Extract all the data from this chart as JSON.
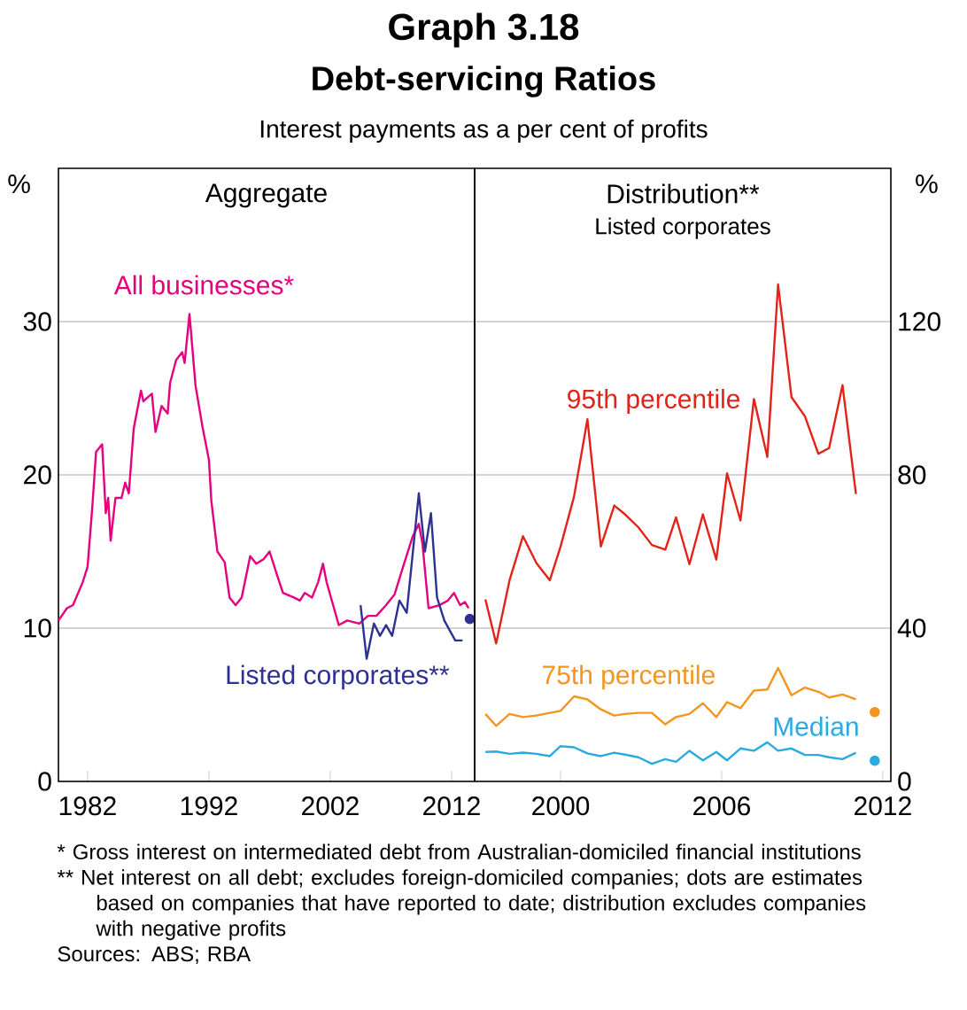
{
  "chart_data": [
    {
      "type": "line",
      "title": "Aggregate",
      "ylabel": "%",
      "annotations": [
        "Graph 3.18",
        "Debt-servicing Ratios",
        "Interest payments as a per cent of profits",
        "* Gross interest on intermediated debt from Australian-domiciled financial institutions",
        "** Net interest on all debt; excludes foreign-domiciled companies; dots are estimates based on companies that have reported to date; distribution excludes companies with negative profits",
        "Sources: ABS; RBA"
      ],
      "xlim": [
        1979.6,
        2013.9
      ],
      "xticks": [
        1982,
        1992,
        2002,
        2012
      ],
      "ylim": [
        0,
        40
      ],
      "yticks": [
        0,
        10,
        20,
        30
      ],
      "grid": "y",
      "series": [
        {
          "name": "All businesses*",
          "color": "#e6007e",
          "x": [
            1979.6,
            1980.3,
            1980.8,
            1981.6,
            1982.0,
            1982.4,
            1982.7,
            1983.2,
            1983.5,
            1983.7,
            1983.9,
            1984.3,
            1984.8,
            1985.1,
            1985.4,
            1985.8,
            1986.4,
            1986.6,
            1987.3,
            1987.6,
            1988.1,
            1988.6,
            1988.8,
            1989.3,
            1989.8,
            1990.0,
            1990.4,
            1990.9,
            1991.5,
            1992.0,
            1992.2,
            1992.7,
            1993.3,
            1993.7,
            1994.2,
            1994.7,
            1995.4,
            1995.9,
            1996.5,
            1997.0,
            1997.6,
            1998.1,
            1999.0,
            1999.5,
            1999.9,
            2000.5,
            2001.0,
            2001.4,
            2001.7,
            2002.7,
            2003.4,
            2004.4,
            2005.1,
            2005.8,
            2006.6,
            2007.3,
            2008.0,
            2008.8,
            2009.3,
            2009.6,
            2010.1,
            2011.0,
            2011.7,
            2012.2,
            2012.7,
            2013.1,
            2013.4
          ],
          "values": [
            10.5,
            11.3,
            11.5,
            13,
            14,
            18,
            21.5,
            22,
            17.5,
            18.5,
            15.7,
            18.5,
            18.5,
            19.5,
            18.8,
            23,
            25.5,
            24.8,
            25.3,
            22.8,
            24.5,
            24,
            26,
            27.5,
            28,
            27.3,
            30.5,
            25.8,
            23,
            21,
            18.3,
            15,
            14.3,
            12,
            11.5,
            12,
            14.7,
            14.2,
            14.5,
            15,
            13.5,
            12.3,
            12,
            11.8,
            12.3,
            12,
            13,
            14.2,
            13,
            10.2,
            10.5,
            10.3,
            10.8,
            10.8,
            11.5,
            12.2,
            14,
            16,
            16.8,
            15.5,
            11.3,
            11.5,
            11.8,
            12.3,
            11.5,
            11.7,
            11.3
          ]
        },
        {
          "name": "Listed corporates**",
          "color": "#2e3192",
          "x": [
            2004.5,
            2005.0,
            2005.6,
            2006.1,
            2006.6,
            2007.1,
            2007.7,
            2008.3,
            2009.3,
            2009.8,
            2010.3,
            2010.8,
            2011.4,
            2012.3,
            2012.9
          ],
          "values": [
            11.5,
            8,
            10.3,
            9.5,
            10.2,
            9.5,
            11.8,
            11,
            18.8,
            15,
            17.5,
            12,
            10.5,
            9.2,
            9.2
          ]
        },
        {
          "type": "scatter",
          "marker": "circle",
          "color": "#2e3192",
          "x": [
            2013.5
          ],
          "values": [
            10.6
          ]
        }
      ]
    },
    {
      "type": "line",
      "title": "Distribution**",
      "subtitle": "Listed corporates",
      "y2label": "%",
      "xlim": [
        1996.8,
        2012.3
      ],
      "xticks": [
        2000,
        2006,
        2012
      ],
      "y2lim": [
        0,
        160
      ],
      "y2ticks": [
        0,
        40,
        80,
        120
      ],
      "grid": "y",
      "series": [
        {
          "name": "95th percentile",
          "axis": "y2",
          "color": "#e2231a",
          "x": [
            1997.2,
            1997.6,
            1998.1,
            1998.6,
            1999.1,
            1999.6,
            2000.0,
            2000.5,
            2001.0,
            2001.5,
            2002.0,
            2002.4,
            2002.9,
            2003.4,
            2003.9,
            2004.3,
            2004.8,
            2005.3,
            2005.8,
            2006.2,
            2006.7,
            2007.2,
            2007.7,
            2008.1,
            2008.6,
            2009.1,
            2009.6,
            2010.0,
            2010.5,
            2011.0
          ],
          "values": [
            47.5,
            36,
            52.5,
            64,
            57,
            52.5,
            61.3,
            74.3,
            94.5,
            61.3,
            72,
            69.7,
            66.3,
            61.7,
            60.5,
            68.9,
            56.7,
            69.7,
            57.9,
            80.4,
            68.1,
            99.8,
            84.7,
            129.7,
            100.3,
            95.3,
            85.5,
            87,
            103.4,
            75
          ]
        },
        {
          "name": "75th percentile",
          "axis": "y2",
          "color": "#f7941d",
          "x": [
            1997.2,
            1997.6,
            1998.1,
            1998.6,
            1999.1,
            1999.6,
            2000.0,
            2000.5,
            2001.0,
            2001.5,
            2002.0,
            2002.4,
            2002.9,
            2003.4,
            2003.9,
            2004.3,
            2004.8,
            2005.3,
            2005.8,
            2006.2,
            2006.7,
            2007.2,
            2007.7,
            2008.1,
            2008.6,
            2009.1,
            2009.6,
            2010.0,
            2010.5,
            2011.0
          ],
          "values": [
            17.6,
            14.5,
            17.6,
            16.8,
            17.2,
            17.9,
            18.4,
            22.2,
            21.4,
            18.8,
            17.2,
            17.6,
            17.9,
            17.9,
            14.9,
            16.8,
            17.6,
            20.4,
            16.8,
            20.7,
            19.1,
            23.7,
            24.0,
            29.6,
            22.5,
            24.5,
            23.4,
            21.9,
            22.7,
            21.4
          ]
        },
        {
          "name": "Median",
          "axis": "y2",
          "color": "#29abe2",
          "x": [
            1997.2,
            1997.6,
            1998.1,
            1998.6,
            1999.1,
            1999.6,
            2000.0,
            2000.5,
            2001.0,
            2001.5,
            2002.0,
            2002.4,
            2002.9,
            2003.4,
            2003.9,
            2004.3,
            2004.8,
            2005.3,
            2005.8,
            2006.2,
            2006.7,
            2007.2,
            2007.7,
            2008.1,
            2008.6,
            2009.1,
            2009.6,
            2010.0,
            2010.5,
            2011.0
          ],
          "values": [
            7.7,
            7.8,
            7.2,
            7.5,
            7.2,
            6.6,
            9.2,
            8.9,
            7.3,
            6.6,
            7.5,
            7.0,
            6.3,
            4.6,
            5.8,
            5.1,
            8.0,
            5.5,
            7.7,
            5.5,
            8.6,
            8.0,
            10.2,
            8.0,
            8.6,
            6.9,
            6.9,
            6.3,
            5.8,
            7.5
          ]
        },
        {
          "type": "scatter",
          "axis": "y2",
          "marker": "circle",
          "color": "#f7941d",
          "x": [
            2011.7
          ],
          "values": [
            18.1
          ]
        },
        {
          "type": "scatter",
          "axis": "y2",
          "marker": "circle",
          "color": "#29abe2",
          "x": [
            2011.7
          ],
          "values": [
            5.4
          ]
        }
      ]
    }
  ]
}
